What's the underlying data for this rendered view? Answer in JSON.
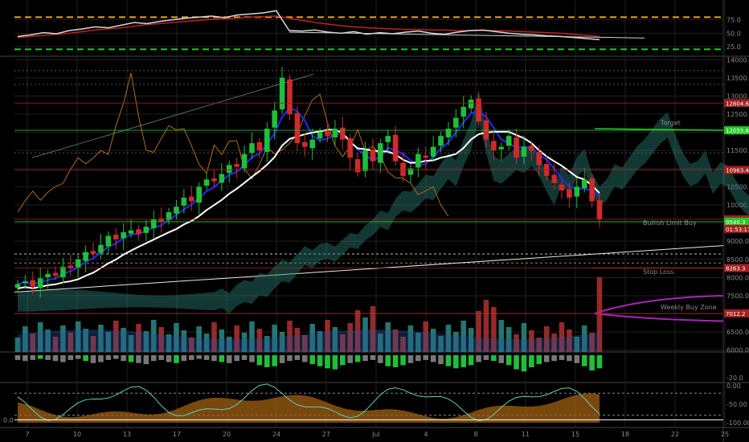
{
  "colors": {
    "background": "#000000",
    "grid": "#202020",
    "bullish": "#1fbf3a",
    "bearish": "#d02a2a",
    "blue": "#1e2cff",
    "white": "#ffffff",
    "orange": "#b36a1c",
    "cloud_bull": "#2a7a70",
    "cloud_bear": "#7a6a70",
    "green_dash": "#25c825",
    "orange_dash": "#f0a020",
    "magenta": "#b020c0",
    "red_level": "#a02020",
    "cyan": "#40e0e0"
  },
  "chart_data": {
    "type": "candlestick",
    "x_ticks": [
      "7",
      "10",
      "13",
      "17",
      "20",
      "24",
      "27",
      "Jul",
      "4",
      "8",
      "11",
      "15",
      "18",
      "22",
      "25"
    ],
    "rsi_panel": {
      "y_ticks": [
        "75.0",
        "50.0",
        "25.0"
      ],
      "upper_level": 80,
      "lower_level": 20,
      "rsi": [
        44,
        47,
        51,
        49,
        55,
        58,
        62,
        60,
        65,
        70,
        68,
        72,
        75,
        78,
        80,
        82,
        79,
        84,
        86,
        88,
        92,
        55,
        54,
        56,
        52,
        50,
        53,
        48,
        51,
        49,
        52,
        54,
        50,
        48,
        52,
        55,
        56,
        53,
        50,
        48,
        47,
        45,
        44,
        42,
        40,
        38
      ],
      "signal": [
        42,
        44,
        46,
        48,
        50,
        53,
        56,
        58,
        60,
        63,
        66,
        68,
        70,
        72,
        74,
        76,
        77,
        78,
        80,
        81,
        82,
        78,
        74,
        70,
        67,
        64,
        62,
        60,
        59,
        58,
        57,
        57,
        56,
        56,
        55,
        55,
        55,
        55,
        54,
        53,
        52,
        51,
        50,
        48,
        46,
        44
      ],
      "trend_from": 52,
      "trend_to": 41
    },
    "price_panel": {
      "y_ticks": [
        "14000.0",
        "13500.0",
        "13000.0",
        "12500.0",
        "12000.0",
        "11500.0",
        "11000.0",
        "10500.0",
        "10000.0",
        "9500.0",
        "9000.0",
        "8500.0",
        "8000.0",
        "7500.0",
        "7000.0",
        "6500.0",
        "6000.0"
      ],
      "ylim": [
        5950,
        14050
      ],
      "closes": [
        7820,
        7900,
        7750,
        7980,
        8100,
        8050,
        8300,
        8250,
        8500,
        8700,
        8650,
        8900,
        9150,
        9050,
        9250,
        9300,
        9200,
        9400,
        9600,
        9550,
        9800,
        9950,
        10200,
        10100,
        10500,
        10700,
        10650,
        10850,
        11100,
        11050,
        11400,
        11700,
        11500,
        12100,
        12600,
        13500,
        12500,
        11700,
        11600,
        11800,
        12000,
        11900,
        12100,
        11800,
        11300,
        10900,
        11500,
        11200,
        11700,
        11900,
        11200,
        10800,
        11000,
        11400,
        11300,
        11600,
        11900,
        12100,
        12400,
        12700,
        12900,
        12300,
        11800,
        11500,
        11600,
        11900,
        11300,
        11600,
        11500,
        11100,
        10800,
        10600,
        10400,
        10200,
        10500,
        10700,
        10100,
        9600
      ],
      "levels": [
        {
          "value": 12804.6,
          "label": "12804.6",
          "color": "#a02020"
        },
        {
          "value": 12055.6,
          "label": "12055.6",
          "color": "#25c825"
        },
        {
          "value": 10963.4,
          "label": "10963.4",
          "color": "#a02020"
        },
        {
          "value": 9605.9,
          "label": "9605.9",
          "color": "#a02020"
        },
        {
          "value": 9540.3,
          "label": "9540.3",
          "color": "#25c825"
        },
        {
          "value": 8263.3,
          "label": "8263.3",
          "color": "#a02020"
        },
        {
          "value": 7012.2,
          "label": "7012.2",
          "color": "#a02020"
        }
      ],
      "countdown": "01:53:11",
      "annotations": [
        {
          "text": "Target",
          "color": "#25c825"
        },
        {
          "text": "Bullish Limit Buy",
          "color": "#25c825"
        },
        {
          "text": "Stop Loss",
          "color": "#d02a2a"
        },
        {
          "text": "Weekly Buy Zone",
          "color": "#40e0e0"
        }
      ]
    },
    "histogram_panel": {
      "y_ticks": [
        "-20.0"
      ],
      "values": [
        -3,
        -4,
        -3,
        -2,
        -3,
        -4,
        -5,
        -3,
        -2,
        -4,
        -6,
        -5,
        -3,
        -2,
        -4,
        -5,
        -6,
        -7,
        -4,
        -3,
        -5,
        -6,
        -4,
        -3,
        -2,
        -3,
        -4,
        -5,
        -6,
        -4,
        -3,
        -5,
        -8,
        -10,
        -9,
        -6,
        -4,
        -3,
        -5,
        -7,
        -9,
        -11,
        -12,
        -8,
        -6,
        -5,
        -4,
        -3,
        -6,
        -9,
        -10,
        -8,
        -6,
        -4,
        -3,
        -5,
        -7,
        -9,
        -11,
        -10,
        -8,
        -5,
        -3,
        -4,
        -6,
        -8,
        -12,
        -14,
        -10,
        -7,
        -5,
        -4,
        -3,
        -4,
        -6,
        -9,
        -13,
        -11
      ]
    },
    "oscillator_panel": {
      "y_ticks": [
        "0.00",
        "-50.00",
        "-100.00"
      ],
      "left_value": "0.0"
    }
  }
}
